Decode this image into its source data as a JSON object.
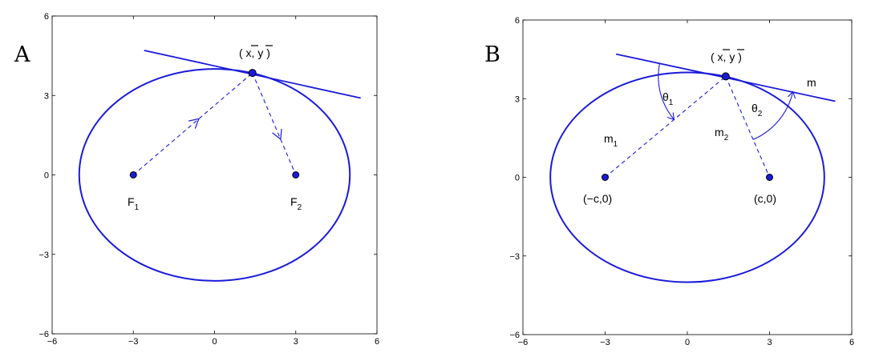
{
  "panels": [
    {
      "letter": "A",
      "ticks": {
        "x": [
          "−6",
          "−3",
          "0",
          "3",
          "6"
        ],
        "y": [
          "−6",
          "−3",
          "0",
          "3",
          "6"
        ]
      },
      "labels": {
        "point": "( x, y )",
        "focus_left_main": "F",
        "focus_left_sub": "1",
        "focus_right_main": "F",
        "focus_right_sub": "2"
      }
    },
    {
      "letter": "B",
      "ticks": {
        "x": [
          "−6",
          "−3",
          "0",
          "3",
          "6"
        ],
        "y": [
          "−6",
          "−3",
          "0",
          "3",
          "6"
        ]
      },
      "labels": {
        "point": "( x, y )",
        "focus_left": "(−c,0)",
        "focus_right": "(c,0)",
        "m": "m",
        "m1_main": "m",
        "m1_sub": "1",
        "m2_main": "m",
        "m2_sub": "2",
        "theta1_main": "θ",
        "theta1_sub": "1",
        "theta2_main": "θ",
        "theta2_sub": "2"
      }
    }
  ],
  "style": {
    "curve_color": "#1a1adb"
  },
  "geometry_data": {
    "axis_range": [
      -6,
      6
    ],
    "ellipse": {
      "center": [
        0,
        0
      ],
      "semi_major": 5,
      "semi_minor": 4
    },
    "foci": [
      [
        -3,
        0
      ],
      [
        3,
        0
      ]
    ],
    "tangent_point": [
      1.4,
      3.85
    ],
    "tangent_line": [
      [
        -2.6,
        4.7
      ],
      [
        5.4,
        2.9
      ]
    ]
  }
}
